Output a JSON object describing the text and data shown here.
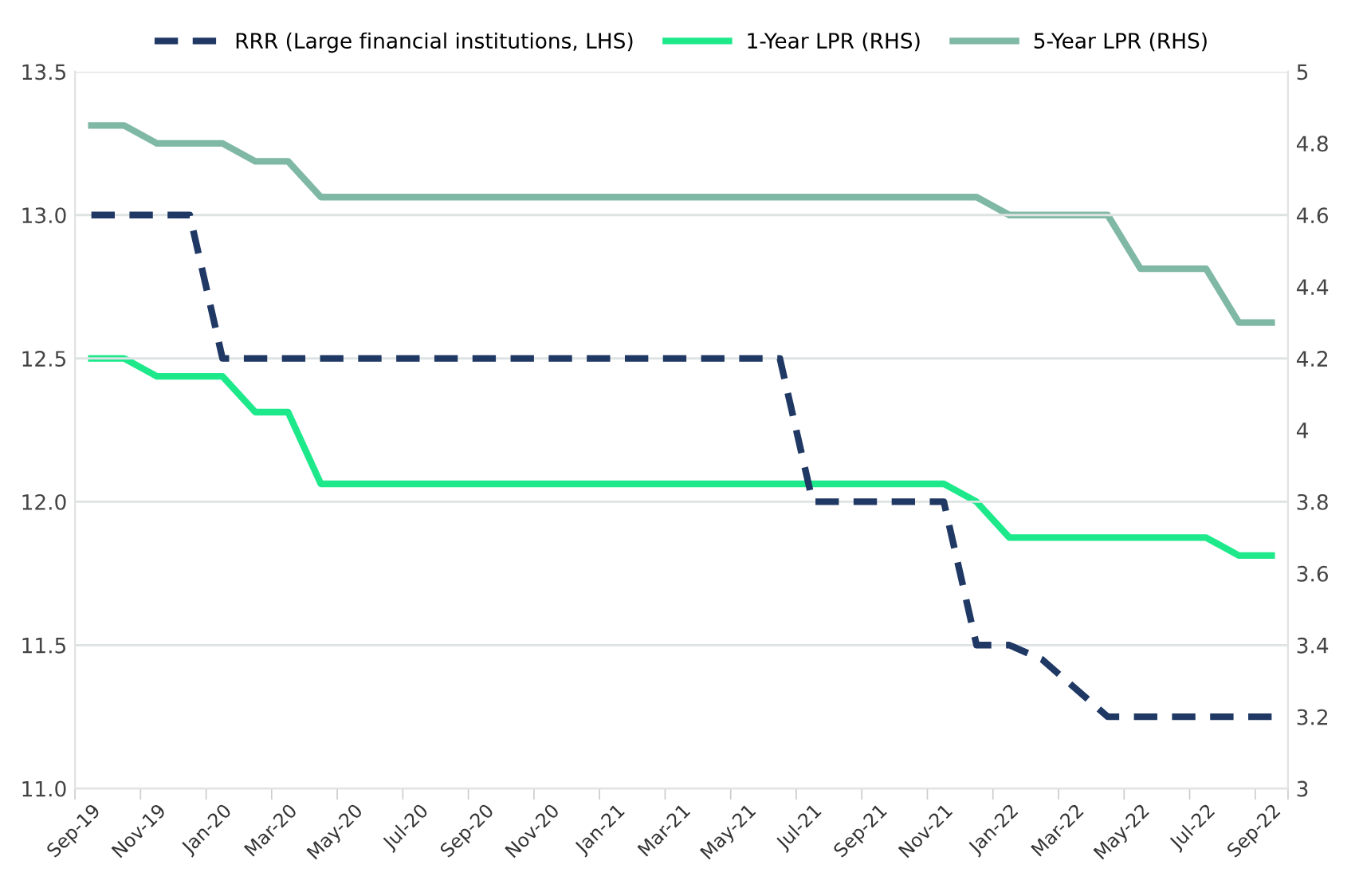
{
  "chart_data": {
    "type": "line",
    "categories": [
      "Sep-19",
      null,
      "Nov-19",
      null,
      "Jan-20",
      null,
      "Mar-20",
      null,
      "May-20",
      null,
      "Jul-20",
      null,
      "Sep-20",
      null,
      "Nov-20",
      null,
      "Jan-21",
      null,
      "Mar-21",
      null,
      "May-21",
      null,
      "Jul-21",
      null,
      "Sep-21",
      null,
      "Nov-21",
      null,
      "Jan-22",
      null,
      "Mar-22",
      null,
      "May-22",
      null,
      "Jul-22",
      null,
      "Sep-22"
    ],
    "series": [
      {
        "name": "RRR (Large financial institutions, LHS)",
        "color": "#1f3864",
        "line_style": "dashed",
        "values": [
          13.0,
          13.0,
          13.0,
          13.0,
          12.5,
          12.5,
          12.5,
          12.5,
          12.5,
          12.5,
          12.5,
          12.5,
          12.5,
          12.5,
          12.5,
          12.5,
          12.5,
          12.5,
          12.5,
          12.5,
          12.5,
          12.5,
          12.0,
          12.0,
          12.0,
          12.0,
          12.0,
          11.5,
          11.5,
          11.45,
          11.35,
          11.25,
          11.25,
          11.25,
          11.25,
          11.25,
          11.25
        ]
      },
      {
        "name": "1-Year LPR (RHS)",
        "color": "#1de98b",
        "line_style": "solid",
        "axis": "y2",
        "values": [
          4.2,
          4.2,
          4.15,
          4.15,
          4.15,
          4.05,
          4.05,
          3.85,
          3.85,
          3.85,
          3.85,
          3.85,
          3.85,
          3.85,
          3.85,
          3.85,
          3.85,
          3.85,
          3.85,
          3.85,
          3.85,
          3.85,
          3.85,
          3.85,
          3.85,
          3.85,
          3.85,
          3.8,
          3.7,
          3.7,
          3.7,
          3.7,
          3.7,
          3.7,
          3.7,
          3.65,
          3.65
        ]
      },
      {
        "name": "5-Year LPR (RHS)",
        "color": "#7fb8a4",
        "line_style": "solid",
        "axis": "y2",
        "values": [
          4.85,
          4.85,
          4.8,
          4.8,
          4.8,
          4.75,
          4.75,
          4.65,
          4.65,
          4.65,
          4.65,
          4.65,
          4.65,
          4.65,
          4.65,
          4.65,
          4.65,
          4.65,
          4.65,
          4.65,
          4.65,
          4.65,
          4.65,
          4.65,
          4.65,
          4.65,
          4.65,
          4.65,
          4.6,
          4.6,
          4.6,
          4.6,
          4.45,
          4.45,
          4.45,
          4.3,
          4.3
        ]
      }
    ],
    "ylim": [
      11.0,
      13.5
    ],
    "yticks": [
      {
        "value": 11.0,
        "label": "11.0"
      },
      {
        "value": 11.5,
        "label": "11.5"
      },
      {
        "value": 12.0,
        "label": "12.0"
      },
      {
        "value": 12.5,
        "label": "12.5"
      },
      {
        "value": 13.0,
        "label": "13.0"
      },
      {
        "value": 13.5,
        "label": "13.5"
      }
    ],
    "y2lim": [
      3,
      5
    ],
    "y2ticks": [
      3,
      3.2,
      3.4,
      3.6,
      3.8,
      4,
      4.2,
      4.4,
      4.6,
      4.8,
      5
    ],
    "grid": "y",
    "legend": "top",
    "marker": "none"
  }
}
